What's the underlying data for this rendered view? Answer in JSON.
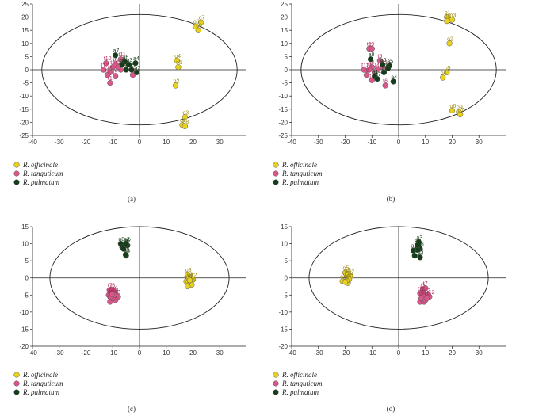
{
  "figure": {
    "colors": {
      "R. officinale": "#e8d21e",
      "R. tanguticum": "#d9578a",
      "R. palmatum": "#163d1a"
    },
    "label_colors": {
      "R. officinale": "#9a8a10",
      "R. tanguticum": "#b0305e",
      "R. palmatum": "#163d1a"
    },
    "legend": [
      "R. officinale",
      "R. tanguticum",
      "R. palmatum"
    ]
  },
  "chart_data": [
    {
      "type": "scatter",
      "panel_label": "(a)",
      "xlim": [
        -40,
        40
      ],
      "ylim": [
        -25,
        25
      ],
      "xticks": [
        -40,
        -30,
        -20,
        -10,
        0,
        10,
        20,
        30
      ],
      "yticks": [
        -25,
        -20,
        -15,
        -10,
        -5,
        0,
        5,
        10,
        15,
        20,
        25
      ],
      "ellipse": {
        "cx": 0,
        "cy": 0,
        "rx": 36.5,
        "ry": 21
      },
      "series": [
        {
          "name": "R. officinale",
          "points": [
            {
              "label": "o7",
              "x": 23,
              "y": 18
            },
            {
              "label": "o6",
              "x": 21,
              "y": 16.5
            },
            {
              "label": "o9",
              "x": 22,
              "y": 15
            },
            {
              "label": "o4",
              "x": 14,
              "y": 3.5
            },
            {
              "label": "o5",
              "x": 14.5,
              "y": 1
            },
            {
              "label": "o2",
              "x": 13.5,
              "y": -6
            },
            {
              "label": "o3",
              "x": 17,
              "y": -18
            },
            {
              "label": "o1",
              "x": 16,
              "y": -21
            },
            {
              "label": "o8",
              "x": 17,
              "y": -21.5
            }
          ]
        },
        {
          "name": "R. tanguticum",
          "points": [
            {
              "label": "t10",
              "x": -12.5,
              "y": 2.5
            },
            {
              "label": "t12",
              "x": -13.5,
              "y": 0
            },
            {
              "label": "t2",
              "x": -10,
              "y": 1
            },
            {
              "label": "t6",
              "x": -9,
              "y": 2
            },
            {
              "label": "t11",
              "x": -7,
              "y": 4
            },
            {
              "label": "t8",
              "x": -11,
              "y": -1
            },
            {
              "label": "t7",
              "x": -12,
              "y": -2
            },
            {
              "label": "t9",
              "x": -9,
              "y": -2.5
            },
            {
              "label": "t1",
              "x": -11,
              "y": -5
            },
            {
              "label": "t3",
              "x": -2.5,
              "y": -2
            },
            {
              "label": "t4",
              "x": -7,
              "y": 0
            },
            {
              "label": "t5",
              "x": -8,
              "y": 1
            }
          ]
        },
        {
          "name": "R. palmatum",
          "points": [
            {
              "label": "a7",
              "x": -9,
              "y": 5.5
            },
            {
              "label": "a6",
              "x": -5.5,
              "y": 3
            },
            {
              "label": "a4",
              "x": -1.5,
              "y": 2.5
            },
            {
              "label": "a3",
              "x": -4,
              "y": 2
            },
            {
              "label": "a8",
              "x": -6.5,
              "y": 2
            },
            {
              "label": "a1",
              "x": -5,
              "y": 0
            },
            {
              "label": "a5",
              "x": -3,
              "y": 0
            },
            {
              "label": "a2",
              "x": -1,
              "y": -1
            }
          ]
        }
      ]
    },
    {
      "type": "scatter",
      "panel_label": "(b)",
      "xlim": [
        -40,
        40
      ],
      "ylim": [
        -25,
        25
      ],
      "xticks": [
        -40,
        -30,
        -20,
        -10,
        0,
        10,
        20,
        30
      ],
      "yticks": [
        -25,
        -20,
        -15,
        -10,
        -5,
        0,
        5,
        10,
        15,
        20,
        25
      ],
      "ellipse": {
        "cx": 0,
        "cy": 0,
        "rx": 36.5,
        "ry": 21
      },
      "series": [
        {
          "name": "R. officinale",
          "points": [
            {
              "label": "o1",
              "x": 18,
              "y": 20
            },
            {
              "label": "o8",
              "x": 18,
              "y": 18.5
            },
            {
              "label": "o3",
              "x": 20,
              "y": 19
            },
            {
              "label": "o2",
              "x": 19,
              "y": 10
            },
            {
              "label": "o5",
              "x": 18,
              "y": -1
            },
            {
              "label": "o4",
              "x": 16.5,
              "y": -3
            },
            {
              "label": "o6",
              "x": 20,
              "y": -15.5
            },
            {
              "label": "o9",
              "x": 22.5,
              "y": -16
            },
            {
              "label": "o7",
              "x": 23,
              "y": -17
            }
          ]
        },
        {
          "name": "R. tanguticum",
          "points": [
            {
              "label": "t1",
              "x": -11,
              "y": 8
            },
            {
              "label": "t9",
              "x": -10,
              "y": 8
            },
            {
              "label": "t5",
              "x": -7,
              "y": 3.5
            },
            {
              "label": "t8",
              "x": -10,
              "y": 1
            },
            {
              "label": "t12",
              "x": -13,
              "y": 0
            },
            {
              "label": "t3",
              "x": -11,
              "y": 0
            },
            {
              "label": "t2",
              "x": -12,
              "y": -2
            },
            {
              "label": "t10",
              "x": -10,
              "y": -4
            },
            {
              "label": "t7",
              "x": -9,
              "y": -1
            },
            {
              "label": "t6",
              "x": -5,
              "y": -6
            },
            {
              "label": "t4",
              "x": -8,
              "y": 0
            },
            {
              "label": "t11",
              "x": -6,
              "y": 1
            }
          ]
        },
        {
          "name": "R. palmatum",
          "points": [
            {
              "label": "a8",
              "x": -10.5,
              "y": 4
            },
            {
              "label": "a6",
              "x": -6,
              "y": 2
            },
            {
              "label": "a5",
              "x": -3.5,
              "y": 1.5
            },
            {
              "label": "a3",
              "x": -4,
              "y": 0.5
            },
            {
              "label": "a2",
              "x": -5.5,
              "y": -1
            },
            {
              "label": "a1",
              "x": -9,
              "y": -2.5
            },
            {
              "label": "a7",
              "x": -8,
              "y": -3.5
            },
            {
              "label": "a4",
              "x": -2,
              "y": -4.5
            }
          ]
        }
      ]
    },
    {
      "type": "scatter",
      "panel_label": "(c)",
      "xlim": [
        -40,
        40
      ],
      "ylim": [
        -20,
        15
      ],
      "xticks": [
        -40,
        -30,
        -20,
        -10,
        0,
        10,
        20,
        30
      ],
      "yticks": [
        -20,
        -15,
        -10,
        -5,
        0,
        5,
        10,
        15
      ],
      "ellipse": {
        "cx": 0,
        "cy": 0,
        "rx": 33.5,
        "ry": 15
      },
      "series": [
        {
          "name": "R. officinale",
          "points": [
            {
              "label": "o8",
              "x": 18,
              "y": 1
            },
            {
              "label": "o1",
              "x": 17.5,
              "y": -1
            },
            {
              "label": "o7",
              "x": 19,
              "y": -0.5
            },
            {
              "label": "o2",
              "x": 20,
              "y": -0.5
            },
            {
              "label": "o5",
              "x": 19,
              "y": -1
            },
            {
              "label": "o6",
              "x": 19.5,
              "y": -2
            },
            {
              "label": "o4",
              "x": 18,
              "y": -2.5
            },
            {
              "label": "o3",
              "x": 18.5,
              "y": -0.3
            },
            {
              "label": "o9",
              "x": 18.8,
              "y": -0.7
            }
          ]
        },
        {
          "name": "R. tanguticum",
          "points": [
            {
              "label": "t7",
              "x": -11,
              "y": -3.5
            },
            {
              "label": "t6",
              "x": -10,
              "y": -3.5
            },
            {
              "label": "t9",
              "x": -9,
              "y": -4.5
            },
            {
              "label": "t10",
              "x": -11.5,
              "y": -5
            },
            {
              "label": "t8",
              "x": -11,
              "y": -5.5
            },
            {
              "label": "t3",
              "x": -8,
              "y": -5.5
            },
            {
              "label": "t1",
              "x": -9,
              "y": -6.5
            },
            {
              "label": "t4",
              "x": -11,
              "y": -7
            },
            {
              "label": "t2",
              "x": -10,
              "y": -6
            },
            {
              "label": "t5",
              "x": -10.5,
              "y": -5.5
            },
            {
              "label": "t11",
              "x": -9.5,
              "y": -5
            },
            {
              "label": "t12",
              "x": -10.2,
              "y": -4.8
            }
          ]
        },
        {
          "name": "R. palmatum",
          "points": [
            {
              "label": "a8",
              "x": -7,
              "y": 10
            },
            {
              "label": "a2",
              "x": -5,
              "y": 10
            },
            {
              "label": "a1",
              "x": -6.5,
              "y": 9
            },
            {
              "label": "a7",
              "x": -4.5,
              "y": 9.5
            },
            {
              "label": "a6",
              "x": -6,
              "y": 8.5
            },
            {
              "label": "a5",
              "x": -5,
              "y": 6.5
            },
            {
              "label": "a3",
              "x": -5.2,
              "y": 6.8
            },
            {
              "label": "a4",
              "x": -5.1,
              "y": 9.8
            }
          ]
        }
      ]
    },
    {
      "type": "scatter",
      "panel_label": "(d)",
      "xlim": [
        -40,
        40
      ],
      "ylim": [
        -20,
        15
      ],
      "xticks": [
        -40,
        -30,
        -20,
        -10,
        0,
        10,
        20,
        30
      ],
      "yticks": [
        -20,
        -15,
        -10,
        -5,
        0,
        5,
        10,
        15
      ],
      "ellipse": {
        "cx": 0,
        "cy": 0,
        "rx": 33.5,
        "ry": 15
      },
      "series": [
        {
          "name": "R. officinale",
          "points": [
            {
              "label": "o5",
              "x": -20,
              "y": 1.5
            },
            {
              "label": "o3",
              "x": -19.5,
              "y": 1
            },
            {
              "label": "o1",
              "x": -19,
              "y": 1
            },
            {
              "label": "o2",
              "x": -18,
              "y": 0.5
            },
            {
              "label": "o4",
              "x": -21,
              "y": -1
            },
            {
              "label": "o8",
              "x": -19,
              "y": -1.5
            },
            {
              "label": "o6",
              "x": -18.5,
              "y": -0.5
            },
            {
              "label": "o7",
              "x": -19.5,
              "y": -0.8
            },
            {
              "label": "o9",
              "x": -20,
              "y": -1.2
            }
          ]
        },
        {
          "name": "R. tanguticum",
          "points": [
            {
              "label": "t3",
              "x": 9,
              "y": -3.5
            },
            {
              "label": "t7",
              "x": 10,
              "y": -3
            },
            {
              "label": "t10",
              "x": 8,
              "y": -4.5
            },
            {
              "label": "t1",
              "x": 9,
              "y": -4.5
            },
            {
              "label": "t2",
              "x": 11,
              "y": -5
            },
            {
              "label": "t12",
              "x": 11.5,
              "y": -5.5
            },
            {
              "label": "t5",
              "x": 8,
              "y": -7
            },
            {
              "label": "t4",
              "x": 9.5,
              "y": -7
            },
            {
              "label": "t6",
              "x": 10,
              "y": -6.5
            },
            {
              "label": "t8",
              "x": 9.5,
              "y": -5.5
            },
            {
              "label": "t9",
              "x": 8.5,
              "y": -6
            },
            {
              "label": "t11",
              "x": 10.5,
              "y": -6
            }
          ]
        },
        {
          "name": "R. palmatum",
          "points": [
            {
              "label": "a3",
              "x": 7.5,
              "y": 10.5
            },
            {
              "label": "a2",
              "x": 7,
              "y": 9.5
            },
            {
              "label": "a7",
              "x": 5.5,
              "y": 8
            },
            {
              "label": "a8",
              "x": 7,
              "y": 8.5
            },
            {
              "label": "a6",
              "x": 8,
              "y": 8.5
            },
            {
              "label": "a5",
              "x": 6,
              "y": 6.5
            },
            {
              "label": "a4",
              "x": 8,
              "y": 6
            },
            {
              "label": "a1",
              "x": 7.2,
              "y": 8.2
            }
          ]
        }
      ]
    }
  ]
}
